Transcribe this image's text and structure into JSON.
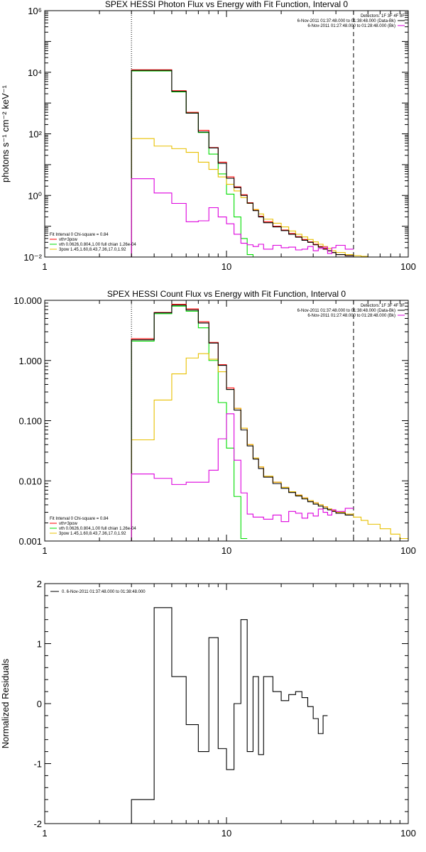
{
  "chart_data": [
    {
      "type": "line",
      "title": "SPEX HESSI Photon Flux vs Energy with Fit Function, Interval 0",
      "ylabel": "photons s⁻¹ cm⁻² keV⁻¹",
      "xlabel": "",
      "xscale": "log",
      "yscale": "log",
      "xlim": [
        1,
        100
      ],
      "ylim": [
        0.01,
        1000000
      ],
      "x_ticks": [
        {
          "value": 1,
          "label": "1"
        },
        {
          "value": 10,
          "label": "10"
        },
        {
          "value": 100,
          "label": "100"
        }
      ],
      "y_ticks": [
        {
          "value": 0.01,
          "label": "10⁻²"
        },
        {
          "value": 1,
          "label": "10⁰"
        },
        {
          "value": 100,
          "label": "10²"
        },
        {
          "value": 10000,
          "label": "10⁴"
        },
        {
          "value": 1000000,
          "label": "10⁶"
        }
      ],
      "vlines": [
        {
          "x": 3,
          "style": "dotted",
          "color": "#000000"
        },
        {
          "x": 50,
          "style": "dashed",
          "color": "#000000"
        }
      ],
      "bin_edges": [
        3,
        4,
        5,
        6,
        7,
        8,
        9,
        10,
        11,
        12,
        13,
        14,
        15,
        16,
        18,
        20,
        22,
        24,
        26,
        28,
        30,
        32,
        34,
        36,
        38,
        40,
        45,
        50,
        55,
        60,
        70
      ],
      "series": [
        {
          "name": "vth+3pow",
          "color": "#ff0000",
          "values": [
            12000,
            12000,
            2500,
            500,
            130,
            36,
            12,
            4,
            1.9,
            1.05,
            0.58,
            0.34,
            0.21,
            0.14,
            0.1,
            0.075,
            0.058,
            0.046,
            0.037,
            0.031,
            0.026,
            0.022,
            0.019,
            0.016,
            0.014,
            0.012,
            0.011,
            null,
            null,
            null
          ]
        },
        {
          "name": "vth 0.0626,0.804,1.00 full chian 1.26e-04",
          "color": "#00dd00",
          "values": [
            11000,
            11000,
            2300,
            470,
            110,
            22,
            5,
            1.1,
            0.2,
            0.04,
            0.012,
            0.007,
            null,
            null,
            null,
            null,
            null,
            null,
            null,
            null,
            null,
            null,
            null,
            null,
            null,
            null,
            null,
            null,
            null,
            null
          ]
        },
        {
          "name": "3pow 1.45,1.60,8.43,7.36,17.0,1.92",
          "color": "#e8c000",
          "values": [
            70,
            40,
            33,
            25,
            12,
            7,
            4,
            2.3,
            1.4,
            0.85,
            0.55,
            0.35,
            0.25,
            0.17,
            0.125,
            0.095,
            0.07,
            0.055,
            0.045,
            0.037,
            0.031,
            0.026,
            0.022,
            0.019,
            0.016,
            0.014,
            0.012,
            0.011,
            0.0105,
            0.01
          ]
        },
        {
          "name": "6-Nov-2011 01:37:48.000 to 01:38:48.000 (Data-Bk)",
          "color": "#000000",
          "values": [
            11500,
            11500,
            2400,
            470,
            115,
            35,
            11,
            3.6,
            1.8,
            1.0,
            0.56,
            0.32,
            0.2,
            0.13,
            0.095,
            0.072,
            0.055,
            0.044,
            0.035,
            0.03,
            0.025,
            0.021,
            0.018,
            0.016,
            0.014,
            0.012,
            0.011,
            null,
            null,
            null
          ]
        },
        {
          "name": "6-Nov-2011 01:27:48.000 to 01:28:48.000 (Bk)",
          "color": "#dd00dd",
          "values": [
            3.5,
            1.2,
            0.55,
            0.14,
            0.15,
            0.4,
            0.2,
            0.12,
            0.055,
            0.028,
            0.025,
            0.022,
            0.026,
            0.018,
            0.024,
            0.02,
            0.021,
            0.017,
            0.018,
            0.022,
            0.016,
            0.019,
            0.021,
            0.013,
            0.02,
            0.024,
            0.018,
            null,
            null,
            null
          ]
        }
      ],
      "legend_top_right": {
        "header": "Detectors: 1F 3F 4F 8F",
        "lines": [
          "6-Nov-2011 01:37:48.000 to 01:38:48.000 (Data-Bk)",
          "6-Nov-2011 01:27:48.000 to 01:28:48.000 (Bk)"
        ]
      },
      "legend_bottom_left": {
        "header": "Fit Interval 0   Chi-square = 0.84",
        "lines": [
          "vth+3pow",
          "vth 0.0626,0.804,1.00 full chian 1.26e-04",
          "3pow 1.45,1.60,8.43,7.36,17.0,1.92"
        ]
      }
    },
    {
      "type": "line",
      "title": "SPEX HESSI Count Flux vs Energy with Fit Function, Interval 0",
      "ylabel": "",
      "xlabel": "",
      "xscale": "log",
      "yscale": "log",
      "xlim": [
        1,
        100
      ],
      "ylim": [
        0.001,
        10
      ],
      "x_ticks": [
        {
          "value": 1,
          "label": "1"
        },
        {
          "value": 10,
          "label": "10"
        },
        {
          "value": 100,
          "label": "100"
        }
      ],
      "y_ticks": [
        {
          "value": 0.001,
          "label": "0.001"
        },
        {
          "value": 0.01,
          "label": "0.010"
        },
        {
          "value": 0.1,
          "label": "0.100"
        },
        {
          "value": 1,
          "label": "1.000"
        },
        {
          "value": 10,
          "label": "10.000"
        }
      ],
      "vlines": [
        {
          "x": 3,
          "style": "dotted",
          "color": "#000000"
        },
        {
          "x": 50,
          "style": "dashed",
          "color": "#000000"
        }
      ],
      "bin_edges": [
        3,
        4,
        5,
        6,
        7,
        8,
        9,
        10,
        11,
        12,
        13,
        14,
        15,
        16,
        18,
        20,
        22,
        24,
        26,
        28,
        30,
        32,
        34,
        36,
        38,
        40,
        45,
        50,
        55,
        60,
        70,
        80,
        90,
        100
      ],
      "series": [
        {
          "name": "vth+3pow",
          "color": "#ff0000",
          "values": [
            2.3,
            6.3,
            8.6,
            7.2,
            4.4,
            2.0,
            0.85,
            0.35,
            0.16,
            0.075,
            0.04,
            0.024,
            0.017,
            0.012,
            0.0095,
            0.0078,
            0.0066,
            0.0058,
            0.0052,
            0.0047,
            0.0043,
            0.004,
            0.0037,
            0.0034,
            0.0032,
            0.003,
            0.0028,
            null,
            null,
            null,
            null,
            null,
            null
          ]
        },
        {
          "name": "vth 0.0626,0.804,1.00 full chian 1.26e-04",
          "color": "#00dd00",
          "values": [
            2.1,
            6.0,
            8.0,
            6.6,
            3.5,
            1.0,
            0.2,
            0.035,
            0.0055,
            0.0011,
            null,
            null,
            null,
            null,
            null,
            null,
            null,
            null,
            null,
            null,
            null,
            null,
            null,
            null,
            null,
            null,
            null,
            null,
            null,
            null,
            null,
            null,
            null
          ]
        },
        {
          "name": "3pow 1.45,1.60,8.43,7.36,17.0,1.92",
          "color": "#e8c000",
          "values": [
            0.048,
            0.22,
            0.6,
            1.1,
            1.3,
            1.05,
            0.65,
            0.33,
            0.16,
            0.075,
            0.04,
            0.024,
            0.017,
            0.012,
            0.0095,
            0.0078,
            0.0066,
            0.0058,
            0.0052,
            0.0047,
            0.0043,
            0.004,
            0.0037,
            0.0034,
            0.0032,
            0.003,
            0.0028,
            0.0025,
            0.0022,
            0.0019,
            0.0016,
            0.0013,
            0.0011
          ]
        },
        {
          "name": "6-Nov-2011 01:37:48.000 to 01:38:48.000 (Data-Bk)",
          "color": "#000000",
          "values": [
            2.2,
            6.2,
            8.3,
            6.9,
            4.2,
            1.95,
            0.83,
            0.33,
            0.15,
            0.07,
            0.038,
            0.023,
            0.016,
            0.0115,
            0.009,
            0.0075,
            0.0064,
            0.0056,
            0.005,
            0.0045,
            0.0041,
            0.0038,
            0.0035,
            0.0033,
            0.0031,
            0.0029,
            0.0027,
            null,
            null,
            null,
            null,
            null,
            null
          ]
        },
        {
          "name": "6-Nov-2011 01:27:48.000 to 01:28:48.000 (Bk)",
          "color": "#dd00dd",
          "values": [
            0.013,
            0.011,
            0.0087,
            0.0095,
            0.0095,
            0.015,
            0.05,
            0.13,
            0.022,
            0.0063,
            0.0028,
            0.0025,
            0.0025,
            0.0023,
            0.0027,
            0.0021,
            0.0031,
            0.0029,
            0.0024,
            0.0029,
            0.0026,
            0.0034,
            0.003,
            0.0027,
            0.0033,
            0.0031,
            0.0035,
            null,
            null,
            null,
            null,
            null,
            null
          ]
        }
      ],
      "legend_top_right": {
        "header": "Detectors: 1F 3F 4F 8F",
        "lines": [
          "6-Nov-2011 01:37:48.000 to 01:38:48.000 (Data-Bk)",
          "6-Nov-2011 01:27:48.000 to 01:28:48.000 (Bk)"
        ]
      },
      "legend_bottom_left": {
        "header": "Fit Interval 0   Chi-square = 0.84",
        "lines": [
          "vth+3pow",
          "vth 0.0626,0.804,1.00 full chian 1.26e-04",
          "3pow 1.45,1.60,8.43,7.36,17.0,1.92"
        ]
      }
    },
    {
      "type": "line",
      "title": "",
      "ylabel": "Normalized Residuals",
      "xlabel": "",
      "xscale": "log",
      "yscale": "linear",
      "xlim": [
        1,
        100
      ],
      "ylim": [
        -2,
        2
      ],
      "x_ticks": [
        {
          "value": 1,
          "label": "1"
        },
        {
          "value": 10,
          "label": "10"
        },
        {
          "value": 100,
          "label": "100"
        }
      ],
      "y_ticks": [
        {
          "value": -2,
          "label": "-2"
        },
        {
          "value": -1,
          "label": "-1"
        },
        {
          "value": 0,
          "label": "0"
        },
        {
          "value": 1,
          "label": "1"
        },
        {
          "value": 2,
          "label": "2"
        }
      ],
      "vlines": [],
      "bin_edges": [
        3,
        4,
        5,
        6,
        7,
        8,
        9,
        10,
        11,
        12,
        13,
        14,
        15,
        16,
        18,
        20,
        22,
        24,
        26,
        28,
        30,
        32,
        34,
        36,
        38,
        40,
        45,
        50
      ],
      "series": [
        {
          "name": "0. 6-Nov-2011 01:37:48.000 to 01:38:48.000",
          "color": "#000000",
          "values": [
            -1.6,
            1.6,
            0.45,
            -0.35,
            -0.8,
            1.1,
            -0.75,
            -1.1,
            0.0,
            1.4,
            -0.8,
            0.45,
            -0.85,
            0.45,
            0.2,
            0.05,
            0.15,
            0.2,
            0.1,
            -0.05,
            -0.25,
            -0.5,
            -0.2,
            null,
            null,
            null,
            null
          ]
        }
      ],
      "legend_top_left": {
        "lines": [
          "0. 6-Nov-2011 01:37:48.000 to 01:38:48.000"
        ]
      }
    }
  ]
}
